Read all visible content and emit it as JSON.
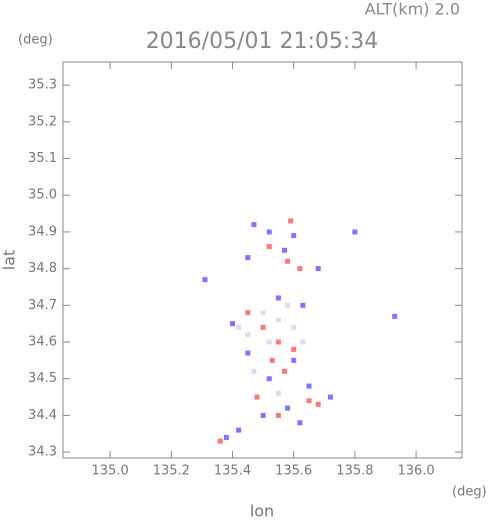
{
  "chart_data": {
    "type": "scatter",
    "title": "2016/05/01 21:05:34",
    "annotation": "ALT(km)  2.0",
    "y_unit": "(deg)",
    "x_unit": "(deg)",
    "x_label": "lon",
    "y_label": "lat",
    "xlim": [
      134.846,
      136.15
    ],
    "ylim": [
      34.284,
      35.363
    ],
    "xticks": [
      {
        "value": 135.0,
        "label": "135.0"
      },
      135.2,
      135.4,
      135.6,
      135.8,
      {
        "value": 136.0,
        "label": "136.0"
      }
    ],
    "yticks": [
      34.3,
      34.4,
      34.5,
      34.6,
      34.7,
      34.8,
      34.9,
      {
        "value": 35.0,
        "label": "35.0"
      },
      35.1,
      35.2,
      35.3
    ],
    "series": [
      {
        "color": "#7878ff",
        "x": [
          135.47,
          135.52,
          135.6,
          135.68,
          135.57,
          135.45,
          135.4,
          135.55,
          135.63,
          135.45,
          135.6,
          135.52,
          135.65,
          135.58,
          135.5,
          135.42,
          135.62,
          135.93,
          135.8,
          135.31,
          135.72,
          135.38
        ],
        "values": [
          34.92,
          34.9,
          34.89,
          34.8,
          34.85,
          34.83,
          34.65,
          34.72,
          34.7,
          34.57,
          34.55,
          34.5,
          34.48,
          34.42,
          34.4,
          34.36,
          34.38,
          34.67,
          34.9,
          34.77,
          34.45,
          34.34
        ]
      },
      {
        "color": "#ff7878",
        "x": [
          135.52,
          135.58,
          135.62,
          135.5,
          135.55,
          135.6,
          135.53,
          135.57,
          135.65,
          135.68,
          135.55,
          135.48,
          135.59,
          135.45,
          135.36
        ],
        "values": [
          34.86,
          34.82,
          34.8,
          34.64,
          34.6,
          34.58,
          34.55,
          34.52,
          34.44,
          34.43,
          34.4,
          34.45,
          34.93,
          34.68,
          34.33
        ]
      },
      {
        "color": "#dcdcf4",
        "x": [
          135.5,
          135.55,
          135.45,
          135.6,
          135.52,
          135.47,
          135.55,
          135.58,
          135.42,
          135.63
        ],
        "values": [
          34.68,
          34.66,
          34.62,
          34.64,
          34.6,
          34.52,
          34.46,
          34.7,
          34.64,
          34.6
        ]
      }
    ]
  }
}
